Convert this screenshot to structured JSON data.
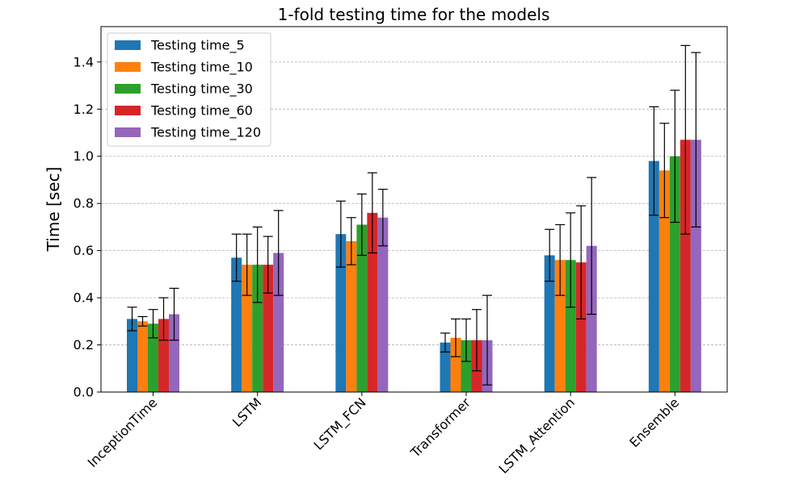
{
  "chart_data": {
    "type": "bar",
    "title": "1-fold testing time for the models",
    "xlabel": "",
    "ylabel": "Time [sec]",
    "ylim": [
      0,
      1.55
    ],
    "yticks": [
      0.0,
      0.2,
      0.4,
      0.6,
      0.8,
      1.0,
      1.2,
      1.4
    ],
    "ytick_labels": [
      "0.0",
      "0.2",
      "0.4",
      "0.6",
      "0.8",
      "1.0",
      "1.2",
      "1.4"
    ],
    "grid": "y-dashed",
    "legend_position": "top-left",
    "categories": [
      "InceptionTime",
      "LSTM",
      "LSTM_FCN",
      "Transformer",
      "LSTM_Attention",
      "Ensemble"
    ],
    "series": [
      {
        "name": "Testing time_5",
        "color": "#1f77b4",
        "values": [
          0.31,
          0.57,
          0.67,
          0.21,
          0.58,
          0.98
        ],
        "errors": [
          0.05,
          0.1,
          0.14,
          0.04,
          0.11,
          0.23
        ]
      },
      {
        "name": "Testing time_10",
        "color": "#ff7f0e",
        "values": [
          0.3,
          0.54,
          0.64,
          0.23,
          0.56,
          0.94
        ],
        "errors": [
          0.02,
          0.13,
          0.1,
          0.08,
          0.15,
          0.2
        ]
      },
      {
        "name": "Testing time_30",
        "color": "#2ca02c",
        "values": [
          0.29,
          0.54,
          0.71,
          0.22,
          0.56,
          1.0
        ],
        "errors": [
          0.06,
          0.16,
          0.13,
          0.09,
          0.2,
          0.28
        ]
      },
      {
        "name": "Testing time_60",
        "color": "#d62728",
        "values": [
          0.31,
          0.54,
          0.76,
          0.22,
          0.55,
          1.07
        ],
        "errors": [
          0.09,
          0.12,
          0.17,
          0.13,
          0.24,
          0.4
        ]
      },
      {
        "name": "Testing time_120",
        "color": "#9467bd",
        "values": [
          0.33,
          0.59,
          0.74,
          0.22,
          0.62,
          1.07
        ],
        "errors": [
          0.11,
          0.18,
          0.12,
          0.19,
          0.29,
          0.37
        ]
      }
    ]
  }
}
